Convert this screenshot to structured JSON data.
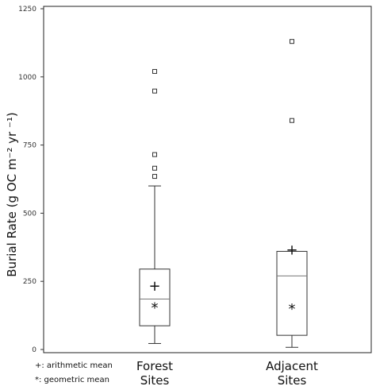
{
  "chart_data": {
    "type": "boxplot",
    "title": "",
    "xlabel": "",
    "ylabel": "Burial Rate (g OC m⁻² yr ⁻¹)",
    "ylim": [
      0,
      1250
    ],
    "yticks": [
      0,
      250,
      500,
      750,
      1000,
      1250
    ],
    "grid": false,
    "categories": [
      [
        "Forest",
        "Sites"
      ],
      [
        "Adjacent",
        "Sites"
      ]
    ],
    "boxes": [
      {
        "category": "Forest Sites",
        "whisker_low": 22,
        "q1": 87,
        "median": 185,
        "q3": 295,
        "whisker_high": 600,
        "arithmetic_mean": 233,
        "geometric_mean": 165,
        "outliers": [
          635,
          665,
          715,
          948,
          1020
        ]
      },
      {
        "category": "Adjacent Sites",
        "whisker_low": 8,
        "q1": 52,
        "median": 270,
        "q3": 360,
        "whisker_high": 360,
        "arithmetic_mean": 365,
        "geometric_mean": 160,
        "outliers": [
          840,
          1130
        ]
      }
    ],
    "legend": {
      "placement": "bottom-left",
      "entries": [
        {
          "symbol": "+",
          "label": ": arithmetic mean"
        },
        {
          "symbol": "*",
          "label": ": geometric mean"
        }
      ]
    }
  }
}
